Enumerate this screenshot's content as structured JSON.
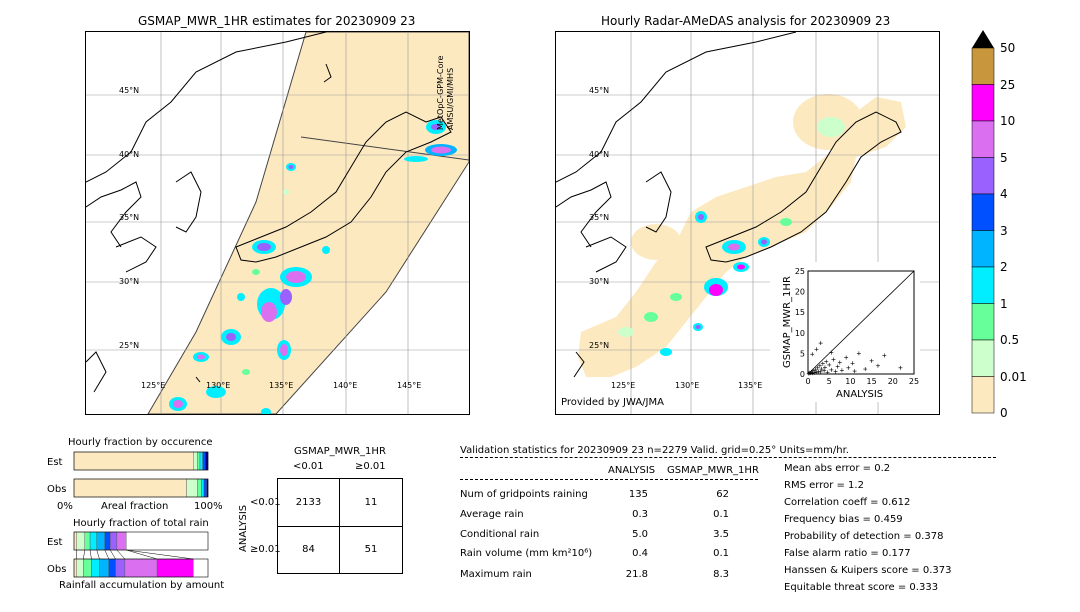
{
  "left_map": {
    "title": "GSMAP_MWR_1HR estimates for 20230909 23",
    "lat_labels": [
      "45°N",
      "40°N",
      "35°N",
      "30°N",
      "25°N"
    ],
    "lon_labels": [
      "125°E",
      "130°E",
      "135°E",
      "140°E",
      "145°E"
    ],
    "swath_label_1": "MetOpC-GPM-Core",
    "swath_label_2": "AMSU/GMI/MHS"
  },
  "right_map": {
    "title": "Hourly Radar-AMeDAS analysis for 20230909 23",
    "lat_labels": [
      "45°N",
      "40°N",
      "35°N",
      "30°N",
      "25°N"
    ],
    "lon_labels": [
      "125°E",
      "130°E",
      "135°E"
    ],
    "provider": "Provided by JWA/JMA"
  },
  "colorbar": {
    "labels": [
      "50",
      "25",
      "10",
      "5",
      "4",
      "3",
      "2",
      "1",
      "0.5",
      "0.01",
      "0"
    ],
    "colors": [
      "#c8963c",
      "#ff00ff",
      "#da70f0",
      "#9b61ff",
      "#0050ff",
      "#00b4ff",
      "#00eeff",
      "#66ff99",
      "#ccffcc",
      "#fde9c0"
    ]
  },
  "chart_data": [
    {
      "type": "scatter",
      "xlabel": "ANALYSIS",
      "ylabel": "GSMAP_MWR_1HR",
      "xlim": [
        0,
        25
      ],
      "ylim": [
        0,
        25
      ],
      "x_ticks": [
        "0",
        "5",
        "10",
        "15",
        "20",
        "25"
      ],
      "y_ticks": [
        "0",
        "5",
        "10",
        "15",
        "20",
        "25"
      ],
      "points": [
        [
          0.2,
          0.1
        ],
        [
          0.4,
          0.3
        ],
        [
          0.6,
          0.2
        ],
        [
          0.8,
          0.5
        ],
        [
          1.0,
          0.2
        ],
        [
          1.2,
          0.8
        ],
        [
          1.5,
          0.3
        ],
        [
          1.8,
          1.0
        ],
        [
          2.0,
          0.4
        ],
        [
          2.2,
          1.5
        ],
        [
          2.5,
          0.6
        ],
        [
          2.8,
          2.0
        ],
        [
          3.0,
          0.5
        ],
        [
          3.2,
          1.2
        ],
        [
          3.5,
          2.5
        ],
        [
          3.8,
          0.8
        ],
        [
          4.0,
          1.6
        ],
        [
          4.3,
          3.0
        ],
        [
          4.6,
          0.4
        ],
        [
          5.0,
          2.2
        ],
        [
          5.5,
          1.0
        ],
        [
          6.0,
          3.5
        ],
        [
          6.5,
          0.6
        ],
        [
          7.0,
          1.8
        ],
        [
          7.5,
          2.8
        ],
        [
          8.0,
          0.9
        ],
        [
          9.0,
          4.0
        ],
        [
          9.5,
          1.5
        ],
        [
          10.5,
          2.6
        ],
        [
          11.0,
          0.7
        ],
        [
          12.0,
          5.0
        ],
        [
          13.5,
          1.2
        ],
        [
          15.0,
          3.2
        ],
        [
          16.5,
          2.0
        ],
        [
          18.0,
          4.5
        ],
        [
          21.8,
          1.5
        ],
        [
          2.0,
          6.0
        ],
        [
          3.0,
          7.5
        ],
        [
          1.0,
          4.8
        ],
        [
          5.5,
          5.2
        ]
      ]
    },
    {
      "type": "bar",
      "title": "Hourly fraction by occurence",
      "categories": [
        "Est",
        "Obs"
      ],
      "xlabel": "Areal fraction",
      "x_tick_left": "0%",
      "x_tick_right": "100%",
      "series": [
        {
          "values": [
            0.89,
            0.84
          ]
        },
        {
          "values": [
            0.03,
            0.08
          ]
        },
        {
          "values": [
            0.02,
            0.03
          ]
        },
        {
          "values": [
            0.02,
            0.02
          ]
        },
        {
          "values": [
            0.02,
            0.02
          ]
        },
        {
          "values": [
            0.02,
            0.01
          ]
        }
      ]
    },
    {
      "type": "bar",
      "title": "Hourly fraction of total rain",
      "categories": [
        "Est",
        "Obs"
      ],
      "xlabel": "Rainfall accumulation by amount",
      "series": [
        {
          "values": [
            0.02,
            0.02
          ]
        },
        {
          "values": [
            0.06,
            0.05
          ]
        },
        {
          "values": [
            0.04,
            0.06
          ]
        },
        {
          "values": [
            0.05,
            0.06
          ]
        },
        {
          "values": [
            0.06,
            0.07
          ]
        },
        {
          "values": [
            0.04,
            0.05
          ]
        },
        {
          "values": [
            0.05,
            0.07
          ]
        },
        {
          "values": [
            0.07,
            0.24
          ]
        },
        {
          "values": [
            0.0,
            0.27
          ]
        }
      ]
    },
    {
      "type": "table",
      "title": "GSMAP_MWR_1HR",
      "col_headers": [
        "<0.01",
        "≥0.01"
      ],
      "row_header_title": "ANALYSIS",
      "row_headers": [
        "<0.01",
        "≥0.01"
      ],
      "cells": [
        [
          "2133",
          "11"
        ],
        [
          "84",
          "51"
        ]
      ]
    }
  ],
  "validation": {
    "header": "Validation statistics for 20230909 23  n=2279 Valid. grid=0.25° Units=mm/hr.",
    "col_analysis": "ANALYSIS",
    "col_gsmap": "GSMAP_MWR_1HR",
    "rows": [
      {
        "label": "Num of gridpoints raining",
        "analysis": "135",
        "gsmap": "62"
      },
      {
        "label": "Average rain",
        "analysis": "0.3",
        "gsmap": "0.1"
      },
      {
        "label": "Conditional rain",
        "analysis": "5.0",
        "gsmap": "3.5"
      },
      {
        "label": "Rain volume (mm km²10⁶)",
        "analysis": "0.4",
        "gsmap": "0.1"
      },
      {
        "label": "Maximum rain",
        "analysis": "21.8",
        "gsmap": "8.3"
      }
    ],
    "scores": [
      "Mean abs error =    0.2",
      "RMS error =    1.2",
      "Correlation coeff =  0.612",
      "Frequency bias =  0.459",
      "Probability of detection =  0.378",
      "False alarm ratio =  0.177",
      "Hanssen & Kuipers score =  0.373",
      "Equitable threat score =  0.333"
    ]
  }
}
